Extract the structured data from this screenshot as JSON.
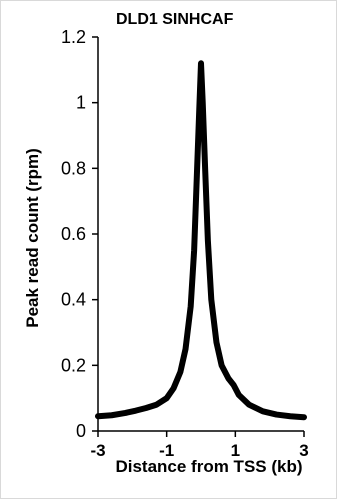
{
  "chart_data": {
    "type": "line",
    "title": "DLD1 SINHCAF",
    "xlabel": "Distance from TSS (kb)",
    "ylabel": "Peak read count (rpm)",
    "xlim": [
      -3,
      3
    ],
    "ylim": [
      0,
      1.2
    ],
    "x_ticks": [
      "-3",
      "-1",
      "1",
      "3"
    ],
    "y_ticks": [
      "0",
      "0.2",
      "0.4",
      "0.6",
      "0.8",
      "1",
      "1.2"
    ],
    "grid": false,
    "legend": "none",
    "line_color": "#000000",
    "series": [
      {
        "x": [
          -3.0,
          -2.6,
          -2.2,
          -1.9,
          -1.6,
          -1.3,
          -1.0,
          -0.8,
          -0.6,
          -0.45,
          -0.3,
          -0.2,
          -0.12,
          -0.05,
          0.0,
          0.05,
          0.12,
          0.2,
          0.3,
          0.45,
          0.6,
          0.8,
          0.95,
          1.1,
          1.4,
          1.8,
          2.2,
          2.6,
          3.0
        ],
        "y": [
          0.045,
          0.048,
          0.055,
          0.062,
          0.07,
          0.08,
          0.1,
          0.13,
          0.18,
          0.25,
          0.38,
          0.55,
          0.78,
          0.98,
          1.12,
          1.0,
          0.8,
          0.58,
          0.4,
          0.27,
          0.2,
          0.16,
          0.14,
          0.11,
          0.08,
          0.06,
          0.05,
          0.045,
          0.042
        ]
      }
    ]
  }
}
